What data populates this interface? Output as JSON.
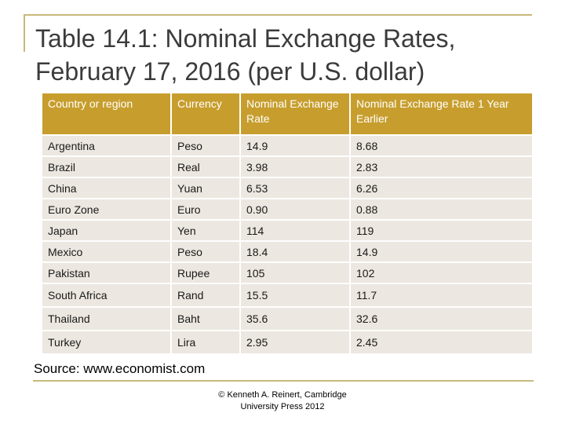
{
  "title": {
    "line1": "Table 14.1: Nominal Exchange Rates,",
    "line2": "February 17, 2016 (per U.S. dollar)"
  },
  "table": {
    "headers": [
      "Country or region",
      "Currency",
      "Nominal Exchange Rate",
      "Nominal Exchange Rate 1 Year Earlier"
    ],
    "rows": [
      [
        "Argentina",
        "Peso",
        "14.9",
        "8.68"
      ],
      [
        "Brazil",
        "Real",
        "3.98",
        "2.83"
      ],
      [
        "China",
        "Yuan",
        "6.53",
        "6.26"
      ],
      [
        "Euro Zone",
        "Euro",
        "0.90",
        "0.88"
      ],
      [
        "Japan",
        "Yen",
        "114",
        "119"
      ],
      [
        "Mexico",
        "Peso",
        "18.4",
        "14.9"
      ],
      [
        "Pakistan",
        "Rupee",
        "105",
        "102"
      ],
      [
        "South Africa",
        "Rand",
        "15.5",
        "11.7"
      ],
      [
        "Thailand",
        "Baht",
        "35.6",
        "32.6"
      ],
      [
        "Turkey",
        "Lira",
        "2.95",
        "2.45"
      ]
    ]
  },
  "source": "Source: www.economist.com",
  "copyright": {
    "line1": "© Kenneth A. Reinert, Cambridge",
    "line2": "University Press 2012"
  },
  "colors": {
    "header_bg": "#c79e2d",
    "row_bg": "#ece7e0",
    "frame": "#c9b97a"
  }
}
